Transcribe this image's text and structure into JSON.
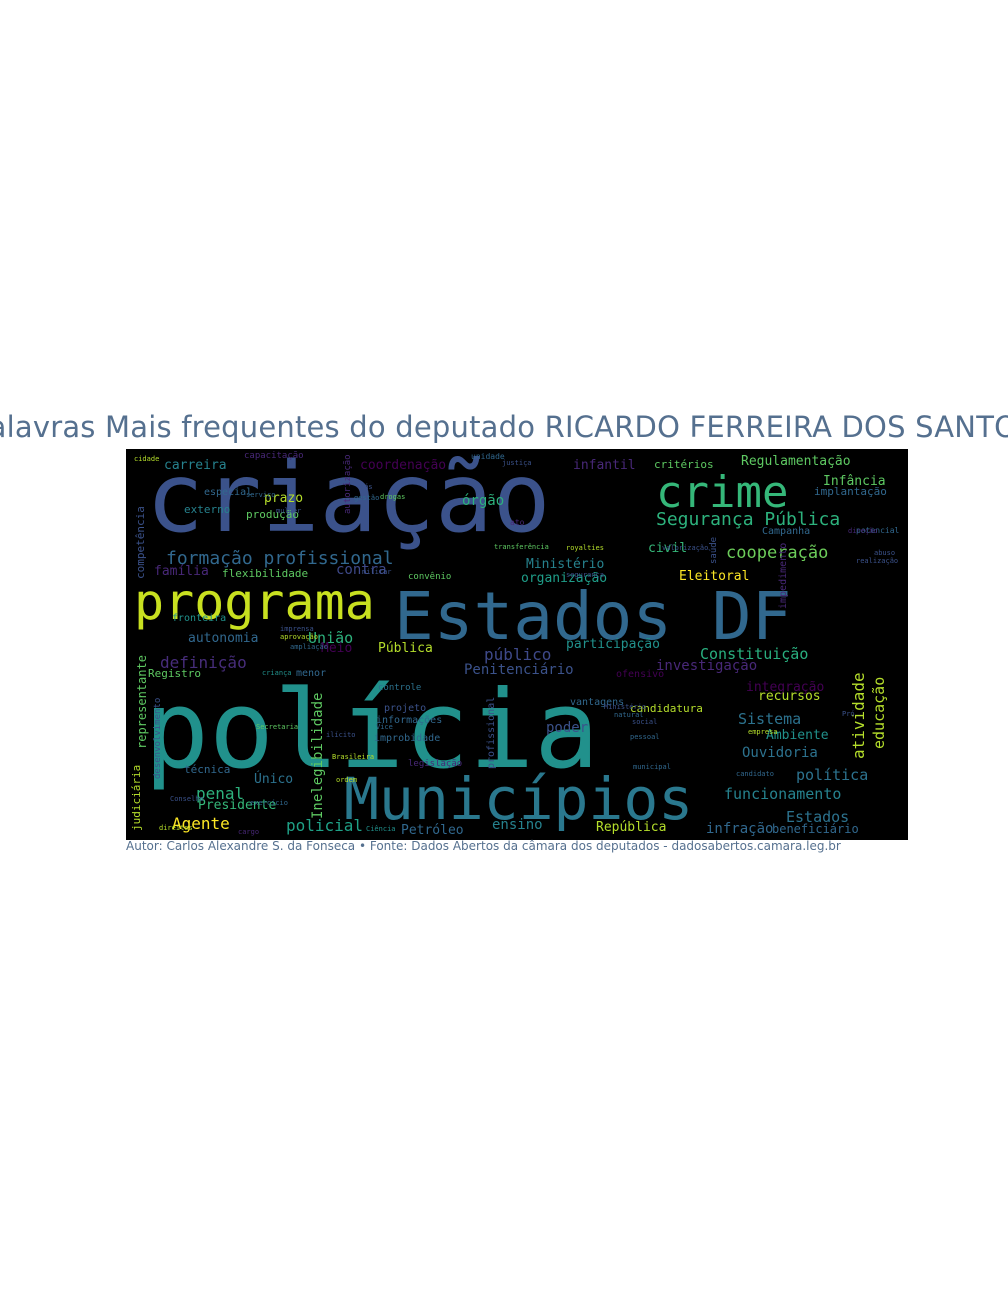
{
  "title": "Palavras Mais frequentes do deputado RICARDO FERREIRA DOS SANTOS",
  "caption": "Autor: Carlos Alexandre S. da Fonseca • Fonte: Dados Abertos da câmara dos deputados - dadosabertos.camara.leg.br",
  "background": "#000000",
  "palette": [
    "#440154",
    "#3b528b",
    "#21918c",
    "#5ec962",
    "#fde725"
  ],
  "words": [
    {
      "text": "criação",
      "weight": 1.0,
      "color": "#3b528b"
    },
    {
      "text": "polícia",
      "weight": 0.98,
      "color": "#21918c"
    },
    {
      "text": "Estados DF",
      "weight": 0.72,
      "color": "#31688e"
    },
    {
      "text": "programa",
      "weight": 0.66,
      "color": "#c8e020"
    },
    {
      "text": "Municípios",
      "weight": 0.62,
      "color": "#2a788e"
    },
    {
      "text": "crime",
      "weight": 0.48,
      "color": "#35b779"
    },
    {
      "text": "Segurança Pública",
      "weight": 0.24,
      "color": "#2db27d"
    },
    {
      "text": "formação profissional",
      "weight": 0.22,
      "color": "#31688e"
    },
    {
      "text": "cooperação",
      "weight": 0.2,
      "color": "#6ccd5a"
    },
    {
      "text": "atividade",
      "weight": 0.2,
      "color": "#b5de2b"
    },
    {
      "text": "Constituição",
      "weight": 0.18,
      "color": "#29af7f"
    },
    {
      "text": "funcionamento",
      "weight": 0.18,
      "color": "#26828e"
    },
    {
      "text": "Eleitoral",
      "weight": 0.17,
      "color": "#fde725"
    },
    {
      "text": "União",
      "weight": 0.17,
      "color": "#2db27d"
    },
    {
      "text": "Sistema",
      "weight": 0.17,
      "color": "#2c728e"
    },
    {
      "text": "Inelegibilidade",
      "weight": 0.17,
      "color": "#5ec962"
    },
    {
      "text": "policial",
      "weight": 0.17,
      "color": "#1fa187"
    },
    {
      "text": "penal",
      "weight": 0.17,
      "color": "#2db27d"
    },
    {
      "text": "Agente",
      "weight": 0.17,
      "color": "#fde725"
    },
    {
      "text": "Estados",
      "weight": 0.17,
      "color": "#2c728e"
    },
    {
      "text": "educação",
      "weight": 0.16,
      "color": "#b5de2b"
    },
    {
      "text": "definição",
      "weight": 0.16,
      "color": "#472d7b"
    },
    {
      "text": "público",
      "weight": 0.16,
      "color": "#3e4989"
    },
    {
      "text": "Ministério",
      "weight": 0.15,
      "color": "#26828e"
    },
    {
      "text": "organização",
      "weight": 0.15,
      "color": "#1f9e89"
    },
    {
      "text": "coordenação",
      "weight": 0.15,
      "color": "#440154"
    },
    {
      "text": "prazo",
      "weight": 0.15,
      "color": "#b5de2b"
    },
    {
      "text": "Regulamentação",
      "weight": 0.15,
      "color": "#5ec962"
    },
    {
      "text": "Infância",
      "weight": 0.15,
      "color": "#5ec962"
    },
    {
      "text": "carreira",
      "weight": 0.15,
      "color": "#26828e"
    },
    {
      "text": "civil",
      "weight": 0.15,
      "color": "#35b779"
    },
    {
      "text": "contra",
      "weight": 0.15,
      "color": "#3e4989"
    },
    {
      "text": "órgão",
      "weight": 0.15,
      "color": "#2db27d"
    },
    {
      "text": "infantil",
      "weight": 0.15,
      "color": "#482878"
    },
    {
      "text": "política",
      "weight": 0.15,
      "color": "#2c728e"
    },
    {
      "text": "Ouvidoria",
      "weight": 0.15,
      "color": "#2c728e"
    },
    {
      "text": "Ambiente",
      "weight": 0.15,
      "color": "#21918c"
    },
    {
      "text": "integração",
      "weight": 0.15,
      "color": "#440154"
    },
    {
      "text": "recursos",
      "weight": 0.15,
      "color": "#b5de2b"
    },
    {
      "text": "investigação",
      "weight": 0.15,
      "color": "#482878"
    },
    {
      "text": "participação",
      "weight": 0.15,
      "color": "#21918c"
    },
    {
      "text": "Penitenciário",
      "weight": 0.15,
      "color": "#3b528b"
    },
    {
      "text": "ensino",
      "weight": 0.15,
      "color": "#26828e"
    },
    {
      "text": "República",
      "weight": 0.15,
      "color": "#b5de2b"
    },
    {
      "text": "infração",
      "weight": 0.15,
      "color": "#31688e"
    },
    {
      "text": "Petróleo",
      "weight": 0.15,
      "color": "#31688e"
    },
    {
      "text": "Presidente",
      "weight": 0.15,
      "color": "#35b779"
    },
    {
      "text": "Único",
      "weight": 0.15,
      "color": "#2c728e"
    },
    {
      "text": "beneficiário",
      "weight": 0.15,
      "color": "#31688e"
    },
    {
      "text": "autonomia",
      "weight": 0.15,
      "color": "#31688e"
    },
    {
      "text": "família",
      "weight": 0.15,
      "color": "#482878"
    },
    {
      "text": "Pública",
      "weight": 0.15,
      "color": "#b5de2b"
    },
    {
      "text": "Meio",
      "weight": 0.15,
      "color": "#440154"
    },
    {
      "text": "poder",
      "weight": 0.15,
      "color": "#3b528b"
    },
    {
      "text": "candidatura",
      "weight": 0.12,
      "color": "#b5de2b"
    },
    {
      "text": "competência",
      "weight": 0.12,
      "color": "#3b528b"
    },
    {
      "text": "representante",
      "weight": 0.12,
      "color": "#5ec962"
    },
    {
      "text": "judiciária",
      "weight": 0.1,
      "color": "#b5de2b"
    },
    {
      "text": "externo",
      "weight": 0.11,
      "color": "#26828e"
    },
    {
      "text": "produção",
      "weight": 0.11,
      "color": "#5ec962"
    },
    {
      "text": "flexibilidade",
      "weight": 0.11,
      "color": "#5ec962"
    },
    {
      "text": "Registro",
      "weight": 0.11,
      "color": "#5ec962"
    },
    {
      "text": "técnica",
      "weight": 0.11,
      "color": "#31688e"
    },
    {
      "text": "implantação",
      "weight": 0.11,
      "color": "#31688e"
    },
    {
      "text": "critérios",
      "weight": 0.11,
      "color": "#5ec962"
    },
    {
      "text": "Campanha",
      "weight": 0.11,
      "color": "#31688e"
    },
    {
      "text": "projeto",
      "weight": 0.11,
      "color": "#3b528b"
    },
    {
      "text": "informações",
      "weight": 0.1,
      "color": "#31688e"
    },
    {
      "text": "improbidade",
      "weight": 0.1,
      "color": "#31688e"
    },
    {
      "text": "profissional",
      "weight": 0.1,
      "color": "#3b528b"
    },
    {
      "text": "vantagens",
      "weight": 0.1,
      "color": "#31688e"
    },
    {
      "text": "fronteira",
      "weight": 0.1,
      "color": "#21918c"
    },
    {
      "text": "menor",
      "weight": 0.1,
      "color": "#31688e"
    },
    {
      "text": "controle",
      "weight": 0.09,
      "color": "#2c728e"
    },
    {
      "text": "ofensivo",
      "weight": 0.1,
      "color": "#440154"
    },
    {
      "text": "especial",
      "weight": 0.1,
      "color": "#31688e"
    },
    {
      "text": "impedimento",
      "weight": 0.1,
      "color": "#482878"
    },
    {
      "text": "desenvolvimento",
      "weight": 0.09,
      "color": "#3b528b"
    },
    {
      "text": "convênio",
      "weight": 0.09,
      "color": "#5ec962"
    },
    {
      "text": "legislação",
      "weight": 0.09,
      "color": "#482878"
    },
    {
      "text": "capacitação",
      "weight": 0.09,
      "color": "#482878"
    },
    {
      "text": "autorização",
      "weight": 0.08,
      "color": "#482878"
    },
    {
      "text": "saúde",
      "weight": 0.08,
      "color": "#3b528b"
    },
    {
      "text": "unidade",
      "weight": 0.08,
      "color": "#31688e"
    },
    {
      "text": "ato",
      "weight": 0.08,
      "color": "#482878"
    },
    {
      "text": "potencial",
      "weight": 0.08,
      "color": "#31688e"
    },
    {
      "text": "gestão",
      "weight": 0.07,
      "color": "#31688e"
    },
    {
      "text": "drogas",
      "weight": 0.07,
      "color": "#5ec962"
    },
    {
      "text": "royalties",
      "weight": 0.07,
      "color": "#b5de2b"
    },
    {
      "text": "transferência",
      "weight": 0.07,
      "color": "#5ec962"
    },
    {
      "text": "valorização",
      "weight": 0.07,
      "color": "#3b528b"
    },
    {
      "text": "segurança",
      "weight": 0.07,
      "color": "#3b528b"
    },
    {
      "text": "Ministério",
      "weight": 0.07,
      "color": "#3b528b"
    },
    {
      "text": "gás",
      "weight": 0.07,
      "color": "#3b528b"
    },
    {
      "text": "Vice",
      "weight": 0.07,
      "color": "#31688e"
    },
    {
      "text": "natural",
      "weight": 0.07,
      "color": "#31688e"
    },
    {
      "text": "social",
      "weight": 0.07,
      "color": "#3b528b"
    },
    {
      "text": "pessoal",
      "weight": 0.07,
      "color": "#31688e"
    },
    {
      "text": "municipal",
      "weight": 0.07,
      "color": "#31688e"
    },
    {
      "text": "candidato",
      "weight": 0.07,
      "color": "#31688e"
    },
    {
      "text": "empresa",
      "weight": 0.07,
      "color": "#b5de2b"
    },
    {
      "text": "Pró",
      "weight": 0.07,
      "color": "#3b528b"
    },
    {
      "text": "abuso",
      "weight": 0.07,
      "color": "#3b528b"
    },
    {
      "text": "direção",
      "weight": 0.07,
      "color": "#482878"
    },
    {
      "text": "realização",
      "weight": 0.07,
      "color": "#3b528b"
    },
    {
      "text": "aprovação",
      "weight": 0.07,
      "color": "#b5de2b"
    },
    {
      "text": "criança",
      "weight": 0.07,
      "color": "#21918c"
    },
    {
      "text": "Secretaria",
      "weight": 0.07,
      "color": "#5ec962"
    },
    {
      "text": "exercício",
      "weight": 0.07,
      "color": "#31688e"
    },
    {
      "text": "cargo",
      "weight": 0.07,
      "color": "#482878"
    },
    {
      "text": "Conselho",
      "weight": 0.07,
      "color": "#3b528b"
    },
    {
      "text": "direitos",
      "weight": 0.07,
      "color": "#b5de2b"
    },
    {
      "text": "ordem",
      "weight": 0.07,
      "color": "#b5de2b"
    },
    {
      "text": "imprensa",
      "weight": 0.07,
      "color": "#3b528b"
    },
    {
      "text": "Ciência",
      "weight": 0.07,
      "color": "#21918c"
    },
    {
      "text": "militar",
      "weight": 0.07,
      "color": "#3b528b"
    },
    {
      "text": "Brasileira",
      "weight": 0.07,
      "color": "#b5de2b"
    },
    {
      "text": "ilícito",
      "weight": 0.07,
      "color": "#3b528b"
    },
    {
      "text": "ampliação",
      "weight": 0.07,
      "color": "#31688e"
    },
    {
      "text": "serviço",
      "weight": 0.07,
      "color": "#31688e"
    },
    {
      "text": "mulher",
      "weight": 0.07,
      "color": "#3b528b"
    },
    {
      "text": "cidade",
      "weight": 0.07,
      "color": "#b5de2b"
    },
    {
      "text": "justiça",
      "weight": 0.07,
      "color": "#3b528b"
    },
    {
      "text": "limite",
      "weight": 0.07,
      "color": "#21918c"
    }
  ]
}
